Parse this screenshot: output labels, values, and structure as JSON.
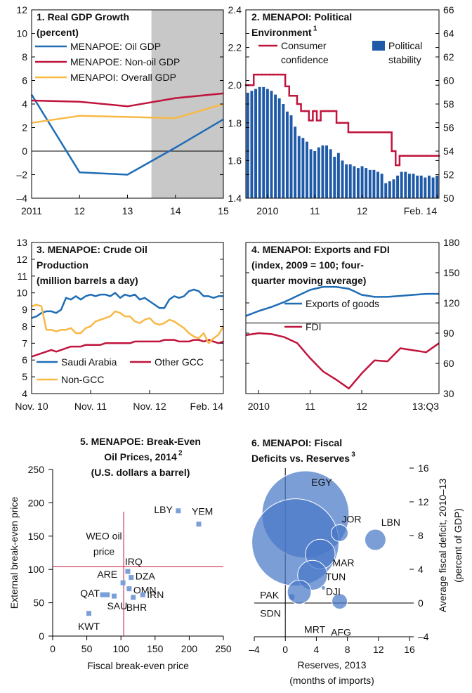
{
  "chart_data": [
    {
      "type": "line",
      "title": [
        "1. Real GDP Growth",
        "(percent)"
      ],
      "x": [
        2011,
        2012,
        2013,
        2014,
        2015
      ],
      "series": [
        {
          "name": "MENAPOE: Oil GDP",
          "color": "#1f6db5",
          "values": [
            4.8,
            -1.8,
            -2.0,
            0.3,
            2.7
          ]
        },
        {
          "name": "MENAPOE: Non-oil GDP",
          "color": "#c0143c",
          "values": [
            4.3,
            4.2,
            3.8,
            4.5,
            4.9
          ]
        },
        {
          "name": "MENAPOI: Overall GDP",
          "color": "#f8b946",
          "values": [
            2.4,
            3.0,
            2.9,
            2.8,
            4.0
          ]
        }
      ],
      "xlim": [
        2011,
        2015
      ],
      "xticks": [
        2011,
        {
          "value": 2012,
          "label": "12"
        },
        {
          "value": 2013,
          "label": "13"
        },
        {
          "value": 2014,
          "label": "14"
        },
        {
          "value": 2015,
          "label": "15"
        }
      ],
      "ylim": [
        -4,
        12
      ],
      "yticks": [
        {
          "value": -4,
          "label": "–4"
        },
        {
          "value": -2,
          "label": "–2"
        },
        0,
        2,
        4,
        6,
        8,
        10,
        12
      ],
      "shade": [
        2013.5,
        2015
      ],
      "shade_color": "#c8c8c9",
      "hline": 0
    },
    {
      "type": "bar_line",
      "title": [
        "2. MENAPOI: Political",
        "Environment"
      ],
      "title_note": "1",
      "categories": [
        null,
        null,
        null,
        null,
        null,
        "2010",
        null,
        null,
        null,
        null,
        null,
        null,
        null,
        null,
        null,
        null,
        null,
        "11",
        null,
        null,
        null,
        null,
        null,
        null,
        null,
        null,
        null,
        null,
        null,
        "12",
        null,
        null,
        null,
        null,
        null,
        null,
        null,
        null,
        null,
        null,
        null,
        null,
        null,
        null,
        null,
        null,
        null,
        null,
        "Feb. 14"
      ],
      "series": [
        {
          "name": "Consumer confidence",
          "color": "#c0143c",
          "kind": "step",
          "axis": "y2",
          "values": [
            59.6,
            59.6,
            60.5,
            60.5,
            60.5,
            60.5,
            60.5,
            60.5,
            60.5,
            60.5,
            59.5,
            58.7,
            58.7,
            58.0,
            57.4,
            57.4,
            56.6,
            57.4,
            56.6,
            57.4,
            57.4,
            57.4,
            57.4,
            56.4,
            56.4,
            56.4,
            55.6,
            55.6,
            55.6,
            55.6,
            55.6,
            55.6,
            55.6,
            55.6,
            55.6,
            55.6,
            55.6,
            54.0,
            52.8,
            53.6,
            53.6,
            53.6,
            53.6,
            53.6,
            53.6,
            53.6,
            53.6,
            53.6,
            53.6
          ]
        },
        {
          "name": "Political stability",
          "color": "#1e5aa8",
          "kind": "bar",
          "values": [
            1.96,
            1.97,
            1.98,
            1.99,
            1.99,
            1.98,
            1.97,
            1.95,
            1.93,
            1.9,
            1.86,
            1.84,
            1.78,
            1.73,
            1.72,
            1.7,
            1.66,
            1.65,
            1.67,
            1.68,
            1.68,
            1.66,
            1.62,
            1.64,
            1.6,
            1.58,
            1.58,
            1.57,
            1.56,
            1.57,
            1.56,
            1.55,
            1.55,
            1.54,
            1.53,
            1.48,
            1.49,
            1.5,
            1.52,
            1.54,
            1.54,
            1.53,
            1.53,
            1.52,
            1.52,
            1.51,
            1.52,
            1.51,
            1.52
          ]
        }
      ],
      "ylim": [
        1.4,
        2.4
      ],
      "yticks": [
        1.4,
        1.6,
        1.8,
        {
          "value": 2,
          "label": "2.0"
        },
        2.2,
        2.4
      ],
      "y2lim": [
        50,
        66
      ],
      "y2ticks": [
        50,
        52,
        54,
        56,
        58,
        60,
        62,
        64,
        66
      ]
    },
    {
      "type": "line",
      "title": [
        "3. MENAPOE: Crude Oil",
        "Production",
        "(million barrels a day)"
      ],
      "categories": [
        "Nov. 10",
        null,
        null,
        null,
        null,
        null,
        null,
        null,
        null,
        null,
        null,
        null,
        "Nov. 11",
        null,
        null,
        null,
        null,
        null,
        null,
        null,
        null,
        null,
        null,
        null,
        "Nov. 12",
        null,
        null,
        null,
        null,
        null,
        null,
        null,
        null,
        null,
        null,
        null,
        null,
        null,
        null,
        "Feb. 14"
      ],
      "series": [
        {
          "name": "Saudi Arabia",
          "color": "#1f6db5",
          "values": [
            8.5,
            8.6,
            8.8,
            8.9,
            8.9,
            8.8,
            9.0,
            9.7,
            9.6,
            9.8,
            9.6,
            9.8,
            9.9,
            9.8,
            9.9,
            9.9,
            9.8,
            10.0,
            9.7,
            9.9,
            9.8,
            9.9,
            9.6,
            9.7,
            9.5,
            9.3,
            9.1,
            9.1,
            9.6,
            9.8,
            9.7,
            9.8,
            10.1,
            10.2,
            10.1,
            9.8,
            9.8,
            9.7,
            9.8,
            9.8
          ]
        },
        {
          "name": "Other GCC",
          "color": "#c0143c",
          "values": [
            6.2,
            6.3,
            6.4,
            6.5,
            6.6,
            6.5,
            6.6,
            6.7,
            6.8,
            6.8,
            6.8,
            6.9,
            6.9,
            6.9,
            6.9,
            7.0,
            7.0,
            7.0,
            7.0,
            7.0,
            7.0,
            7.1,
            7.1,
            7.1,
            7.1,
            7.1,
            7.1,
            7.2,
            7.2,
            7.2,
            7.1,
            7.1,
            7.1,
            7.2,
            7.2,
            7.1,
            7.2,
            7.1,
            7.0,
            7.1
          ]
        },
        {
          "name": "Non-GCC",
          "color": "#f8b946",
          "values": [
            9.2,
            9.3,
            9.2,
            7.8,
            7.8,
            7.7,
            7.8,
            7.8,
            7.9,
            7.6,
            7.6,
            7.9,
            8.0,
            8.3,
            8.4,
            8.5,
            8.6,
            8.9,
            8.8,
            8.6,
            8.6,
            8.3,
            8.2,
            8.4,
            8.5,
            8.2,
            8.1,
            8.2,
            8.4,
            8.3,
            8.1,
            7.9,
            7.6,
            7.4,
            7.3,
            7.6,
            7.0,
            7.3,
            7.5,
            8.0
          ]
        }
      ],
      "ylim": [
        4,
        13
      ],
      "yticks": [
        4,
        5,
        6,
        7,
        8,
        9,
        10,
        11,
        12,
        13
      ]
    },
    {
      "type": "line",
      "title": [
        "4. MENAPOI: Exports and FDI",
        "(index, 2009 = 100; four-",
        "quarter moving average)"
      ],
      "categories": [
        null,
        "2010",
        null,
        null,
        null,
        "11",
        null,
        null,
        null,
        "12",
        null,
        null,
        null,
        null,
        null,
        "13:Q3"
      ],
      "series": [
        {
          "name": "Exports of goods",
          "color": "#1f6db5",
          "axis": "y2",
          "values": [
            107,
            112,
            116,
            121,
            127,
            133,
            136,
            136,
            134,
            128,
            126,
            126,
            127,
            128,
            129,
            129
          ]
        },
        {
          "name": "FDI",
          "color": "#c0143c",
          "axis": "y2",
          "values": [
            88,
            90,
            89,
            86,
            80,
            65,
            52,
            44,
            35,
            50,
            63,
            62,
            75,
            73,
            71,
            80
          ]
        }
      ],
      "y2lim": [
        30,
        180
      ],
      "y2ticks": [
        30,
        60,
        90,
        120,
        150,
        180
      ],
      "hline": 100
    },
    {
      "type": "scatter",
      "title": [
        "5. MENAPOE: Break-Even",
        "Oil Prices, 2014",
        "(U.S. dollars a barrel)"
      ],
      "title_note": "2",
      "x": [
        184,
        214,
        110,
        115,
        103,
        112,
        73,
        80,
        90,
        118,
        132,
        53
      ],
      "values": [
        188,
        168,
        97,
        88,
        80,
        71,
        62,
        62,
        60,
        58,
        62,
        34
      ],
      "labels": [
        "LBY",
        "YEM",
        "IRQ",
        "DZA",
        "ARE",
        "OMN",
        "QAT",
        null,
        "SAU",
        "BHR",
        "IRN",
        "KWT"
      ],
      "color": "#7b9fd9",
      "xlim": [
        0,
        250
      ],
      "xticks": [
        0,
        50,
        100,
        150,
        200,
        250
      ],
      "ylim": [
        0,
        250
      ],
      "yticks": [
        0,
        50,
        100,
        150,
        200,
        250
      ],
      "xlabel": "Fiscal break-even price",
      "ylabel": "External break-even price",
      "ref_value": 104,
      "ref_color": "#c0143c",
      "annotation": [
        "WEO oil",
        "price"
      ]
    },
    {
      "type": "bubble",
      "title": [
        "6. MENAPOI: Fiscal",
        "Deficits vs. Reserves"
      ],
      "title_note": "3",
      "x": [
        2.6,
        1.3,
        7.0,
        11.6,
        4.5,
        3.5,
        4.9,
        0.8,
        1.8,
        7.0
      ],
      "values": [
        10.5,
        7.2,
        8.3,
        7.5,
        5.8,
        3.3,
        1.8,
        0.7,
        1.3,
        0.2
      ],
      "sizes": [
        240,
        240,
        9,
        14,
        28,
        28,
        0.6,
        1.6,
        18,
        7.6
      ],
      "labels": [
        "EGY",
        "PAK",
        "JOR",
        "LBN",
        "MAR",
        "TUN",
        "DJI",
        "SDN",
        "MRT",
        "AFG"
      ],
      "color": "#4a78c8",
      "xlim": [
        -4,
        16
      ],
      "xticks": [
        {
          "value": -4,
          "label": "–4"
        },
        0,
        4,
        8,
        12,
        16
      ],
      "y2lim": [
        -4,
        16
      ],
      "y2ticks": [
        {
          "value": -4,
          "label": "–4"
        },
        0,
        4,
        8,
        12,
        16
      ],
      "xlabel": [
        "Reserves, 2013",
        "(months of imports)"
      ],
      "y2label": [
        "Average fiscal deficit, 2010–13",
        "(percent of GDP)"
      ]
    }
  ]
}
